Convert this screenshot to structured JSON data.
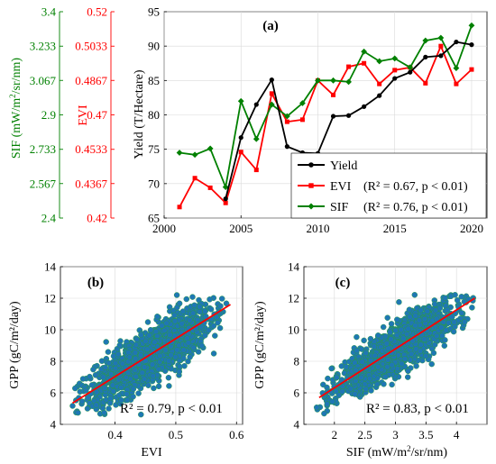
{
  "colors": {
    "yield": "#000000",
    "evi": "#ff0000",
    "sif": "#008000",
    "scatter_fill": "#1f77b4",
    "scatter_edge": "#2a9a4a",
    "fit_line": "#ff0000",
    "sif_axis": "#008000",
    "evi_axis": "#ff0000"
  },
  "chart_data": [
    {
      "panel_label": "(a)",
      "type": "line",
      "x": [
        2001,
        2002,
        2003,
        2004,
        2005,
        2006,
        2007,
        2008,
        2009,
        2010,
        2011,
        2012,
        2013,
        2014,
        2015,
        2016,
        2017,
        2018,
        2019,
        2020
      ],
      "xlim": [
        2000,
        2021
      ],
      "xticks": [
        "2000",
        "2005",
        "2010",
        "2015",
        "2020"
      ],
      "ylabel": "Yield  (T/Hectare)",
      "ylim": [
        65,
        95
      ],
      "yticks": [
        "65",
        "70",
        "75",
        "80",
        "85",
        "90",
        "95"
      ],
      "evi_axis": {
        "label": "EVI",
        "lim": [
          0.42,
          0.52
        ],
        "ticks": [
          "0.42",
          "0.4367",
          "0.4533",
          "0.47",
          "0.4867",
          "0.5033",
          "0.52"
        ]
      },
      "sif_axis": {
        "label_main": "SIF  (mW/m",
        "label_sup": "2",
        "label_end": "/sr/nm)",
        "lim": [
          2.4,
          3.4
        ],
        "ticks": [
          "2.4",
          "2.567",
          "2.733",
          "2.9",
          "3.067",
          "3.233",
          "3.4"
        ]
      },
      "series": [
        {
          "key": "yield",
          "name": "Yield",
          "x": [
            2004,
            2005,
            2006,
            2007,
            2008,
            2009,
            2010,
            2011,
            2012,
            2013,
            2014,
            2015,
            2016,
            2017,
            2018,
            2019,
            2020
          ],
          "values": [
            67.8,
            76.7,
            81.5,
            85.1,
            75.4,
            74.5,
            74.4,
            79.8,
            79.9,
            81.2,
            82.8,
            85.3,
            86.2,
            88.4,
            88.6,
            90.6,
            90.2
          ]
        },
        {
          "key": "evi",
          "name": "EVI",
          "legend_stats": "(R² = 0.67, p < 0.01)",
          "values": [
            66.6,
            70.8,
            69.4,
            67.2,
            74.6,
            72.0,
            83.1,
            79.0,
            79.3,
            85.0,
            82.9,
            87.0,
            87.5,
            84.5,
            86.5,
            86.9,
            84.6,
            90.0,
            84.5,
            86.6
          ]
        },
        {
          "key": "sif",
          "name": "SIF",
          "legend_stats": "(R² = 0.76, p < 0.01)",
          "values": [
            74.5,
            74.2,
            75.1,
            69.5,
            82.0,
            76.5,
            81.5,
            79.8,
            81.7,
            85.0,
            85.0,
            84.8,
            89.2,
            87.8,
            88.2,
            86.9,
            90.8,
            91.2,
            86.8,
            93.0
          ]
        }
      ],
      "legend_position": "bottom-right"
    },
    {
      "panel_label": "(b)",
      "type": "scatter",
      "xlabel": "EVI",
      "ylabel": "GPP (gC/m²/day)",
      "xlim": [
        0.31,
        0.61
      ],
      "ylim": [
        4,
        14
      ],
      "xticks": [
        "0.4",
        "0.5",
        "0.6"
      ],
      "yticks": [
        "4",
        "6",
        "8",
        "10",
        "12",
        "14"
      ],
      "fit_line": {
        "x": [
          0.33,
          0.59
        ],
        "y": [
          5.35,
          11.6
        ]
      },
      "point_cloud": {
        "x_range": [
          0.33,
          0.59
        ],
        "y_range": [
          4.6,
          12.3
        ],
        "approx_points": 1500
      },
      "annotation": "R² = 0.79, p < 0.01"
    },
    {
      "panel_label": "(c)",
      "type": "scatter",
      "xlabel_main": "SIF (mW/m",
      "xlabel_sup": "2",
      "xlabel_end": "/sr/nm)",
      "ylabel": "GPP (gC/m²/day)",
      "xlim": [
        1.5,
        4.5
      ],
      "ylim": [
        4,
        14
      ],
      "xticks": [
        "2",
        "2.5",
        "3",
        "3.5",
        "4"
      ],
      "yticks": [
        "4",
        "6",
        "8",
        "10",
        "12",
        "14"
      ],
      "fit_line": {
        "x": [
          1.75,
          4.3
        ],
        "y": [
          5.7,
          12.0
        ]
      },
      "point_cloud": {
        "x_range": [
          1.7,
          4.3
        ],
        "y_range": [
          4.6,
          12.3
        ],
        "approx_points": 1500
      },
      "annotation": "R² = 0.83, p < 0.01"
    }
  ]
}
